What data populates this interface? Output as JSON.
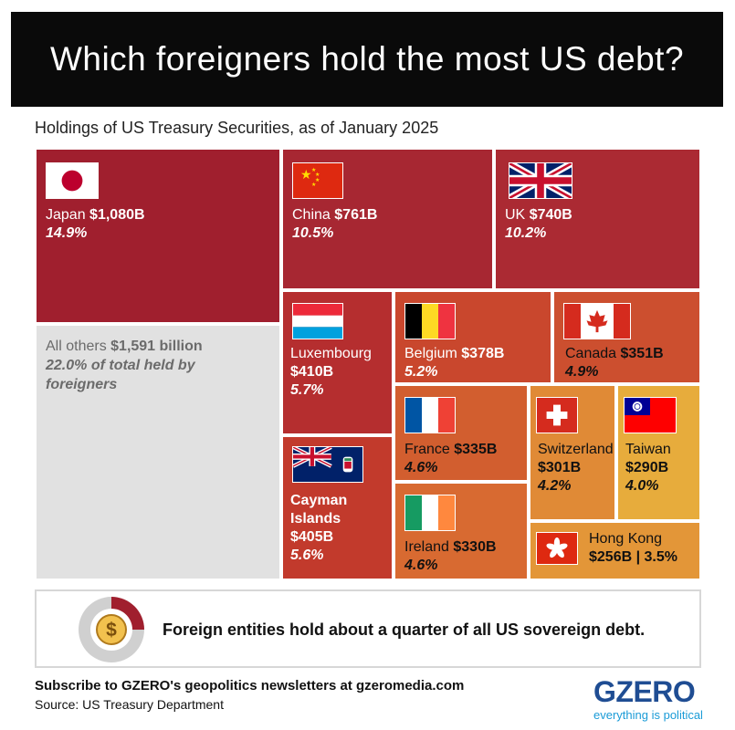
{
  "header": {
    "title": "Which foreigners hold the most US debt?",
    "subtitle": "Holdings of US Treasury Securities, as of January 2025"
  },
  "chart_data": {
    "type": "treemap",
    "unit": "billion USD",
    "items": [
      {
        "name": "Japan",
        "value": 1080,
        "value_label": "$1,080B",
        "share": 14.9,
        "share_label": "14.9%",
        "color": "#a01f2e",
        "flag_icon": "japan-flag-icon"
      },
      {
        "name": "China",
        "value": 761,
        "value_label": "$761B",
        "share": 10.5,
        "share_label": "10.5%",
        "color": "#a72732",
        "flag_icon": "china-flag-icon"
      },
      {
        "name": "UK",
        "value": 740,
        "value_label": "$740B",
        "share": 10.2,
        "share_label": "10.2%",
        "color": "#ab2a33",
        "flag_icon": "uk-flag-icon"
      },
      {
        "name": "Luxembourg",
        "value": 410,
        "value_label": "$410B",
        "share": 5.7,
        "share_label": "5.7%",
        "color": "#b52e2f",
        "flag_icon": "luxembourg-flag-icon"
      },
      {
        "name": "Cayman Islands",
        "value": 405,
        "value_label": "$405B",
        "share": 5.6,
        "share_label": "5.6%",
        "color": "#c23a2c",
        "flag_icon": "cayman-islands-flag-icon"
      },
      {
        "name": "Belgium",
        "value": 378,
        "value_label": "$378B",
        "share": 5.2,
        "share_label": "5.2%",
        "color": "#c9472d",
        "flag_icon": "belgium-flag-icon"
      },
      {
        "name": "Canada",
        "value": 351,
        "value_label": "$351B",
        "share": 4.9,
        "share_label": "4.9%",
        "color": "#cc4f2f",
        "flag_icon": "canada-flag-icon"
      },
      {
        "name": "France",
        "value": 335,
        "value_label": "$335B",
        "share": 4.6,
        "share_label": "4.6%",
        "color": "#d25e2f",
        "flag_icon": "france-flag-icon"
      },
      {
        "name": "Ireland",
        "value": 330,
        "value_label": "$330B",
        "share": 4.6,
        "share_label": "4.6%",
        "color": "#d86a31",
        "flag_icon": "ireland-flag-icon"
      },
      {
        "name": "Switzerland",
        "value": 301,
        "value_label": "$301B",
        "share": 4.2,
        "share_label": "4.2%",
        "color": "#e08a36",
        "flag_icon": "switzerland-flag-icon"
      },
      {
        "name": "Taiwan",
        "value": 290,
        "value_label": "$290B",
        "share": 4.0,
        "share_label": "4.0%",
        "color": "#e7ac3c",
        "flag_icon": "taiwan-flag-icon"
      },
      {
        "name": "Hong Kong",
        "value": 256,
        "value_label": "$256B",
        "share": 3.5,
        "share_label": "3.5%",
        "color": "#e39638",
        "flag_icon": "hong-kong-flag-icon"
      }
    ],
    "others": {
      "name": "All others",
      "value": 1591,
      "value_label": "$1,591 billion",
      "share": 22.0,
      "share_text": "22.0% of total held by foreigners",
      "color": "#e1e1e1"
    }
  },
  "callout": {
    "text": "Foreign entities hold about a quarter of all US sovereign debt.",
    "icon": "dollar-coin-pie-icon",
    "pie_share": 0.25,
    "pie_color": "#a01f2e",
    "ring_color": "#d0d0d0"
  },
  "footer": {
    "subscribe": "Subscribe to GZERO's geopolitics newsletters at gzeromedia.com",
    "source": "Source: US Treasury Department",
    "logo": "GZERO",
    "tagline": "everything is political"
  }
}
